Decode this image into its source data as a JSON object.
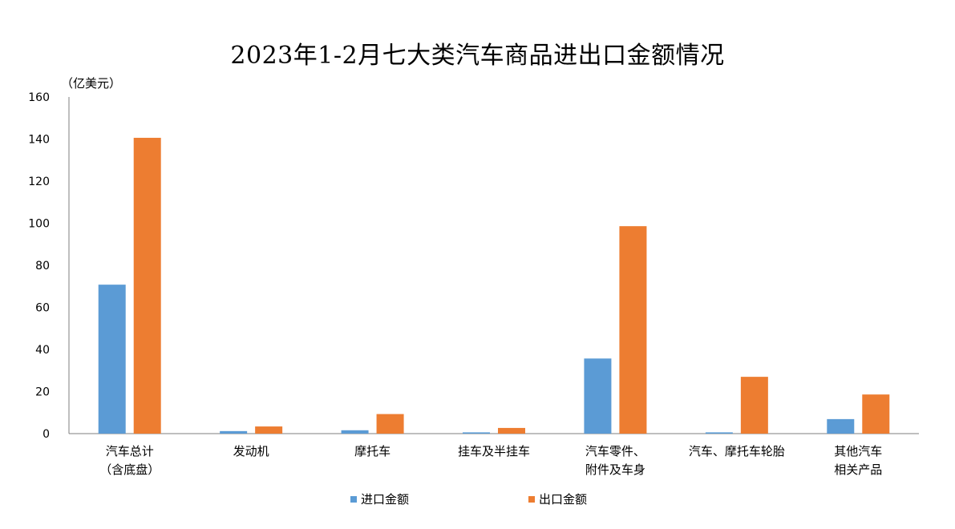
{
  "chart_data": {
    "type": "bar",
    "title": "2023年1-2月七大类汽车商品进出口金额情况",
    "ylabel": "（亿美元）",
    "xlabel": "",
    "ylim": [
      0,
      160
    ],
    "yticks": [
      0,
      20,
      40,
      60,
      80,
      100,
      120,
      140,
      160
    ],
    "grid": false,
    "legend_position": "bottom",
    "categories": [
      [
        "汽车总计",
        "（含底盘）"
      ],
      [
        "发动机"
      ],
      [
        "摩托车"
      ],
      [
        "挂车及半挂车"
      ],
      [
        "汽车零件、",
        "附件及车身"
      ],
      [
        "汽车、摩托车轮胎"
      ],
      [
        "其他汽车",
        "相关产品"
      ]
    ],
    "series": [
      {
        "name": "进口金额",
        "color": "#5B9BD5",
        "values": [
          70.8,
          1.2,
          1.6,
          0.6,
          35.7,
          0.6,
          6.9
        ]
      },
      {
        "name": "出口金额",
        "color": "#ED7D31",
        "values": [
          140.6,
          3.4,
          9.3,
          2.7,
          98.6,
          27.0,
          18.6
        ]
      }
    ]
  }
}
